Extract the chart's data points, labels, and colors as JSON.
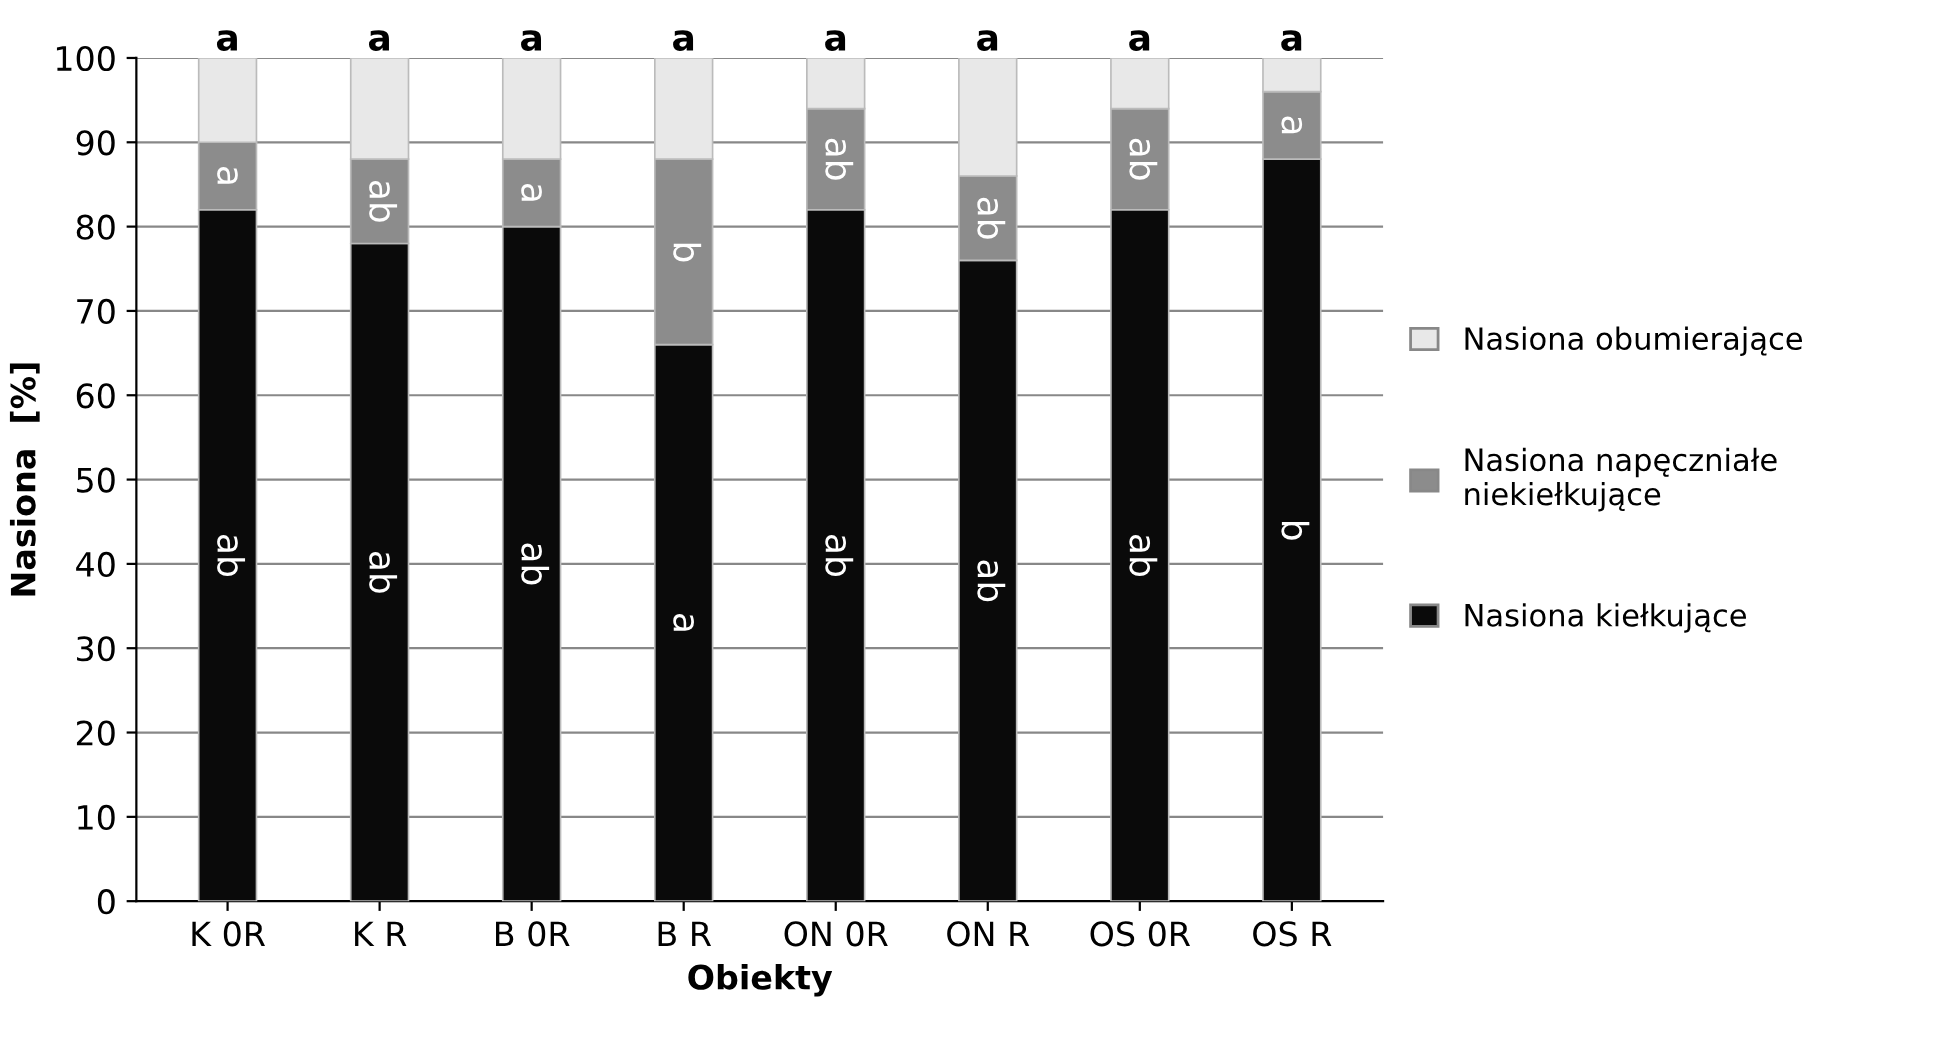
{
  "chart_data": {
    "type": "bar",
    "stacked": true,
    "xlabel": "Obiekty",
    "ylabel": "Nasiona  [%]",
    "categories": [
      "K 0R",
      "K R",
      "B 0R",
      "B R",
      "ON 0R",
      "ON R",
      "OS 0R",
      "OS R"
    ],
    "series": [
      {
        "name": "Nasiona kiełkujące",
        "color": "#0a0a0a",
        "values": [
          82,
          78,
          80,
          66,
          82,
          76,
          82,
          88
        ],
        "value_labels": [
          "ab",
          "ab",
          "ab",
          "a",
          "ab",
          "ab",
          "ab",
          "b"
        ]
      },
      {
        "name": "Nasiona napęczniałe niekiełkujące",
        "color": "#8c8c8c",
        "values": [
          8,
          10,
          8,
          22,
          12,
          10,
          12,
          8
        ],
        "value_labels": [
          "a",
          "ab",
          "a",
          "b",
          "ab",
          "ab",
          "ab",
          "a"
        ]
      },
      {
        "name": "Nasiona obumierające",
        "color": "#e8e8e8",
        "values": [
          10,
          12,
          12,
          12,
          6,
          14,
          6,
          4
        ]
      }
    ],
    "totals": [
      "a",
      "a",
      "a",
      "a",
      "a",
      "a",
      "a",
      "a"
    ],
    "ylim": [
      0,
      100
    ],
    "yticks": [
      0,
      10,
      20,
      30,
      40,
      50,
      60,
      70,
      80,
      90,
      100
    ],
    "grid": "y",
    "legend": "right"
  }
}
